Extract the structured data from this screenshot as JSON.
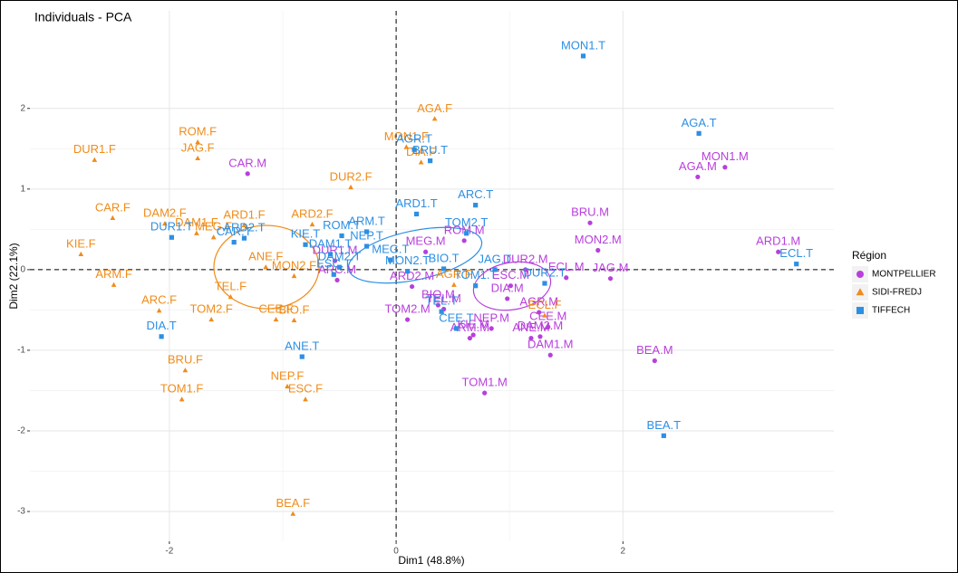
{
  "chart_data": {
    "type": "scatter",
    "title": "Individuals - PCA",
    "x_label": "Dim1 (48.8%)",
    "y_label": "Dim2 (22.1%)",
    "legend_title": "Région",
    "xlim": [
      -3.23,
      3.86
    ],
    "ylim": [
      -3.37,
      3.21
    ],
    "xticks": [
      -2,
      0,
      2
    ],
    "yticks": [
      -3,
      -2,
      -1,
      0,
      1,
      2
    ],
    "grid": true,
    "series": [
      {
        "name": "MONTPELLIER",
        "color": "#b83fdc",
        "marker": "circle",
        "labels": [
          "CAR.M",
          "AGA.M",
          "MON1.M",
          "ARD1.M",
          "BRU.M",
          "MON2.M",
          "JAG.M",
          "ECL.M",
          "DUR2.M",
          "ESC.M",
          "DIA.M",
          "ROM.M",
          "MEG.M",
          "ARD2.M",
          "BIO.M",
          "TOM2.M",
          "TEL.M",
          "ARC.M",
          "DUR1.M",
          "AGR.M",
          "CEE.M",
          "DAM2.M",
          "NEP.M",
          "KIE.M",
          "ANE.M",
          "ARM.M",
          "TOM1.M",
          "DAM1.M",
          "BEA.M"
        ],
        "x": [
          -1.31,
          2.66,
          2.9,
          3.37,
          1.71,
          1.78,
          1.89,
          1.5,
          1.14,
          1.01,
          0.98,
          0.6,
          0.26,
          0.14,
          0.37,
          0.1,
          0.42,
          -0.52,
          -0.54,
          1.26,
          1.34,
          1.27,
          0.84,
          0.68,
          1.19,
          0.65,
          0.78,
          1.36,
          2.28
        ],
        "values": [
          1.19,
          1.15,
          1.27,
          0.22,
          0.58,
          0.24,
          -0.11,
          -0.1,
          0.0,
          -0.2,
          -0.36,
          0.36,
          0.22,
          -0.21,
          -0.44,
          -0.62,
          -0.49,
          -0.13,
          0.11,
          -0.53,
          -0.71,
          -0.83,
          -0.73,
          -0.81,
          -0.85,
          -0.85,
          -1.53,
          -1.06,
          -1.13
        ]
      },
      {
        "name": "SIDI-FREDJ",
        "color": "#f08c1a",
        "marker": "triangle",
        "labels": [
          "BEA.F",
          "AGA.F",
          "MON1.F",
          "DIA.F",
          "DUR2.F",
          "ROM.F",
          "JAG.F",
          "DUR1.F",
          "CAR.F",
          "DAM2.F",
          "KIE.F",
          "DAM1.F",
          "MEG.F",
          "ARD1.F",
          "ARD2.F",
          "ARM.F",
          "ANE.F",
          "TEL.F",
          "TOM2.F",
          "MON2.F",
          "CEE.F",
          "BIO.F",
          "ARC.F",
          "BRU.F",
          "TOM1.F",
          "NEP.F",
          "ESC.F",
          "ECL.F",
          "AGR.F"
        ],
        "x": [
          -0.91,
          0.34,
          0.09,
          0.22,
          -0.4,
          -1.75,
          -1.75,
          -2.66,
          -2.5,
          -2.04,
          -2.78,
          -1.76,
          -1.61,
          -1.34,
          -0.74,
          -2.49,
          -1.15,
          -1.46,
          -1.63,
          -0.9,
          -1.06,
          -0.9,
          -2.09,
          -1.86,
          -1.89,
          -0.96,
          -0.8,
          1.31,
          0.51
        ],
        "values": [
          -3.03,
          1.87,
          1.52,
          1.33,
          1.02,
          1.58,
          1.38,
          1.36,
          0.64,
          0.57,
          0.19,
          0.45,
          0.4,
          0.55,
          0.56,
          -0.19,
          0.03,
          -0.34,
          -0.62,
          -0.08,
          -0.62,
          -0.63,
          -0.51,
          -1.25,
          -1.61,
          -1.45,
          -1.61,
          -0.57,
          -0.19
        ]
      },
      {
        "name": "TIFFECH",
        "color": "#2d8fe3",
        "marker": "square",
        "labels": [
          "MON1.T",
          "AGA.T",
          "BRU.T",
          "AGR.T",
          "ARC.T",
          "ARD1.T",
          "ARM.T",
          "NEP.T",
          "TOM2.T",
          "JAG.T",
          "ROM.T",
          "KIE.T",
          "ARD2.T",
          "DUR1.T",
          "CAR.T",
          "DAM1.T",
          "DAM2.T",
          "ESC.T",
          "MEG.T",
          "MON2.T",
          "BIO.T",
          "TOM1.T",
          "TEL.T",
          "CEE.T",
          "DUR2.T",
          "DIA.T",
          "ANE.T",
          "BEA.T",
          "ECL.T"
        ],
        "x": [
          1.65,
          2.67,
          0.3,
          0.16,
          0.7,
          0.18,
          -0.26,
          -0.26,
          0.62,
          0.87,
          -0.48,
          -0.8,
          -1.34,
          -1.98,
          -1.43,
          -0.58,
          -0.5,
          -0.55,
          -0.05,
          0.1,
          0.42,
          0.7,
          0.4,
          0.53,
          1.31,
          -2.07,
          -0.83,
          2.36,
          3.53
        ],
        "values": [
          2.65,
          1.69,
          1.35,
          1.49,
          0.8,
          0.69,
          0.47,
          0.29,
          0.45,
          0.0,
          0.42,
          0.31,
          0.39,
          0.4,
          0.34,
          0.19,
          0.03,
          -0.06,
          0.12,
          -0.02,
          0.01,
          -0.2,
          -0.52,
          -0.73,
          -0.17,
          -0.83,
          -1.08,
          -2.06,
          0.07
        ]
      }
    ]
  }
}
